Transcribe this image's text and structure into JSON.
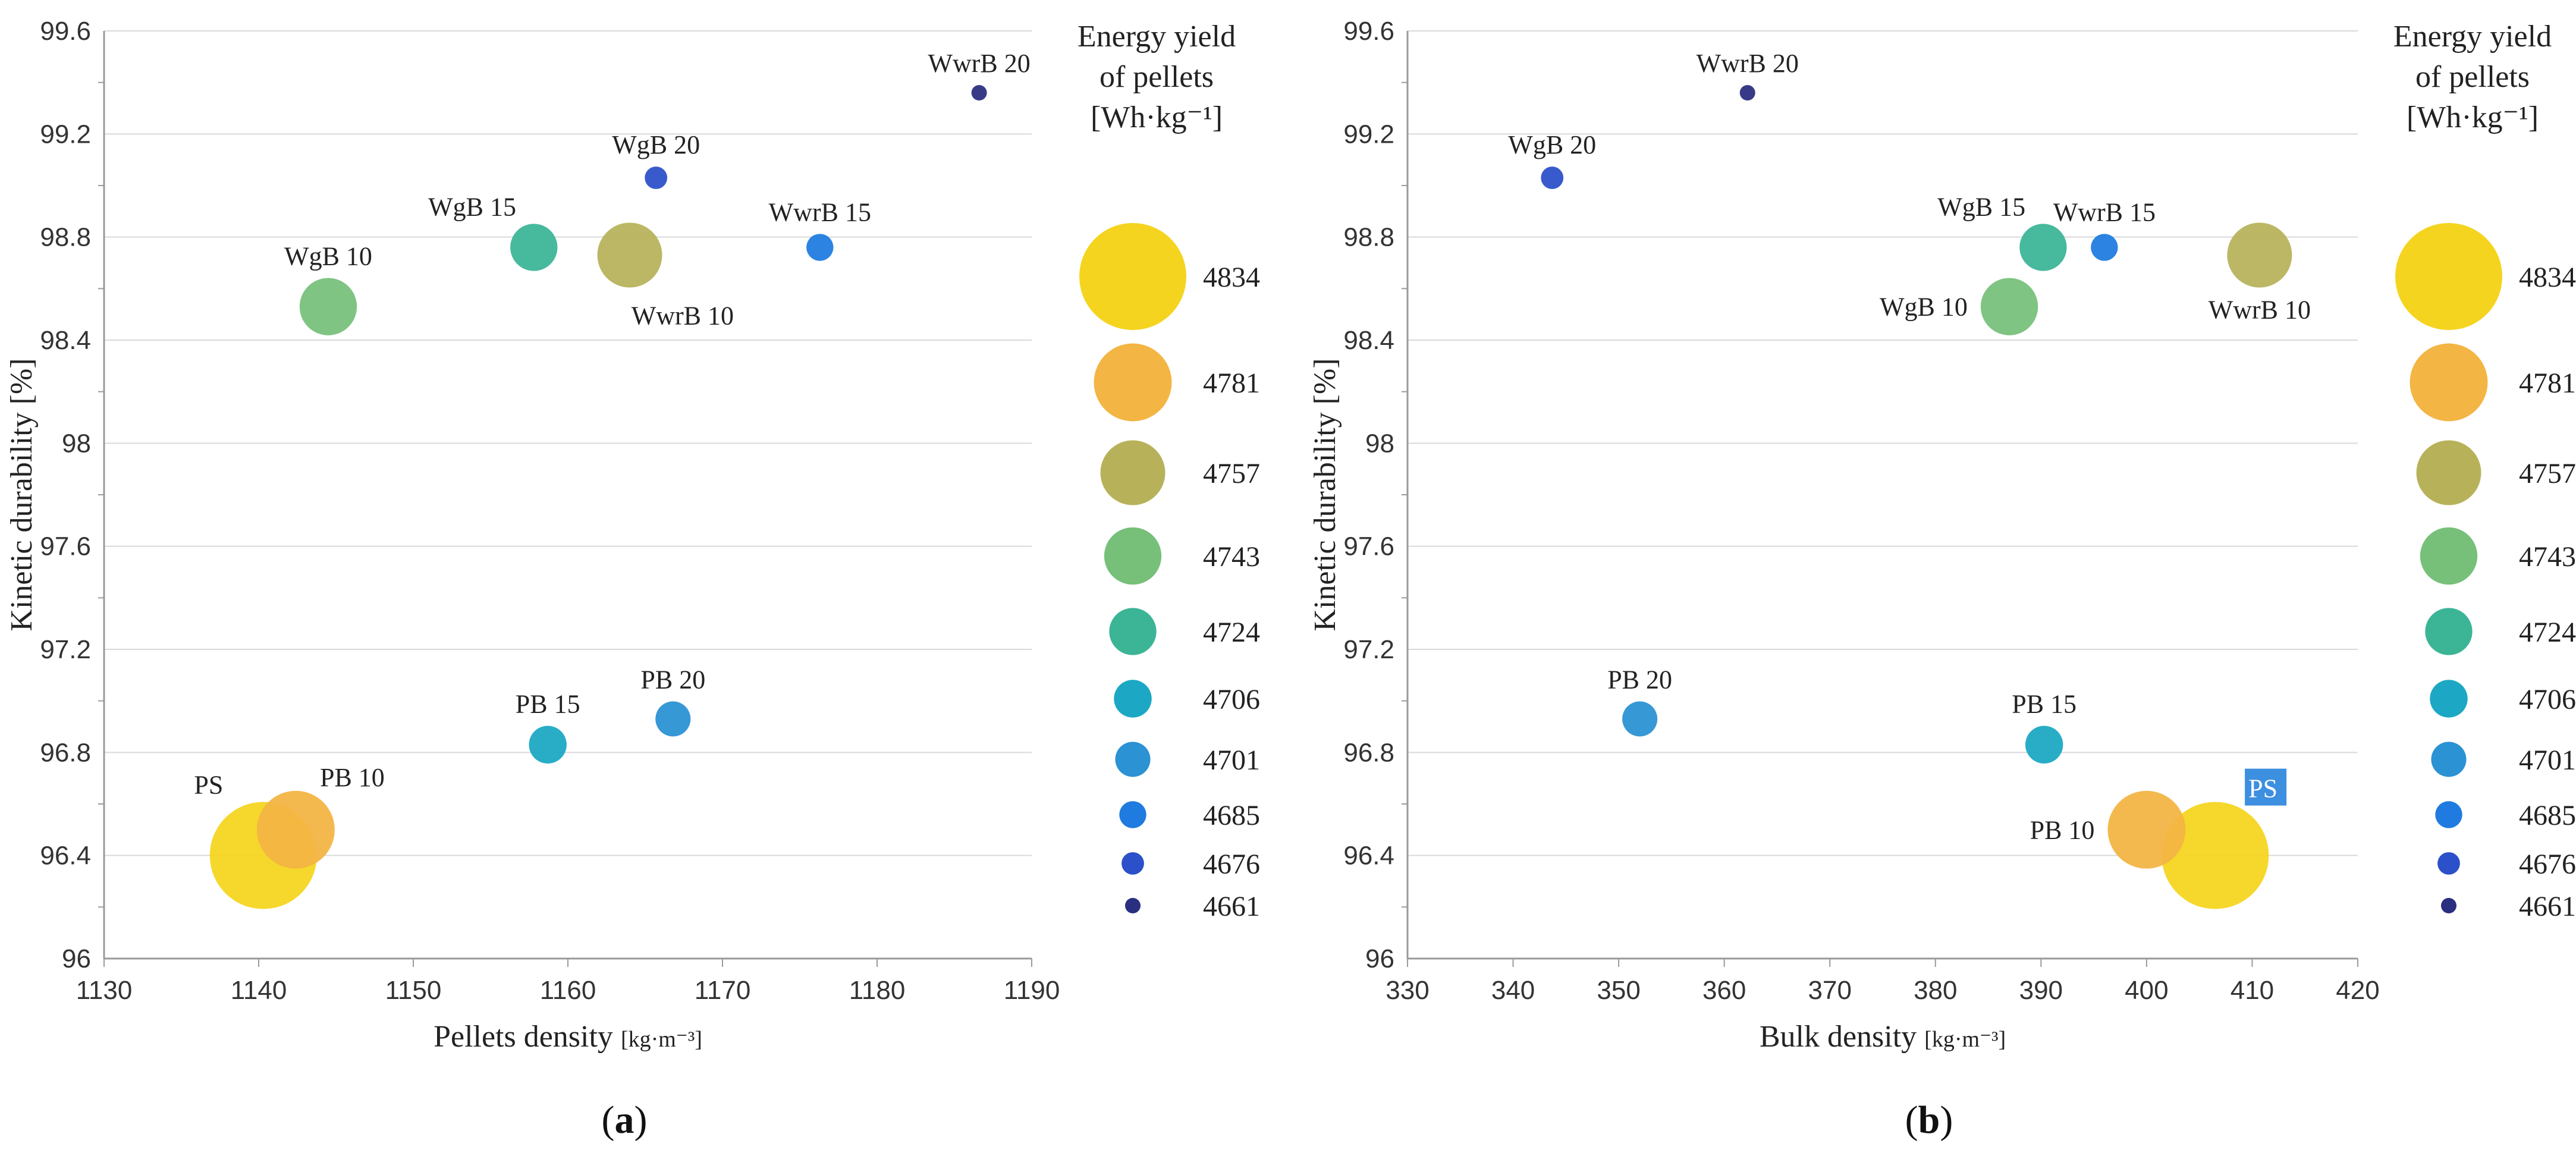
{
  "chart_data": [
    {
      "type": "scatter",
      "panel": "(a)",
      "caption": {
        "open": "(",
        "letter": "a",
        "close": ")"
      },
      "xlabel": "Pellets density",
      "xlabel_unit": "[kg·m⁻³]",
      "ylabel": "Kinetic durability [%]",
      "xlim": [
        1130,
        1190
      ],
      "ylim": [
        96,
        99.6
      ],
      "x_ticks": [
        1130,
        1140,
        1150,
        1160,
        1170,
        1180,
        1190
      ],
      "y_ticks": [
        "96",
        "96.4",
        "96.8",
        "97.2",
        "97.6",
        "98",
        "98.4",
        "98.8",
        "99.2",
        "99.6"
      ],
      "grid": "horizontal",
      "size_variable": "Energy yield of pellets [Wh·kg⁻¹]",
      "points": [
        {
          "label": "PS",
          "x": 1140.3,
          "y": 96.4,
          "energy": 4834,
          "color": "#f5d41f",
          "label_pos": "top-left"
        },
        {
          "label": "PB 10",
          "x": 1142.4,
          "y": 96.5,
          "energy": 4781,
          "color": "#f3b543",
          "label_pos": "top-right"
        },
        {
          "label": "PB 15",
          "x": 1158.7,
          "y": 96.83,
          "energy": 4706,
          "color": "#1ca8c4",
          "label_pos": "top"
        },
        {
          "label": "PB 20",
          "x": 1166.8,
          "y": 96.93,
          "energy": 4701,
          "color": "#2b92d3",
          "label_pos": "top"
        },
        {
          "label": "WgB 10",
          "x": 1144.5,
          "y": 98.53,
          "energy": 4743,
          "color": "#77c07a",
          "label_pos": "top"
        },
        {
          "label": "WgB 15",
          "x": 1157.8,
          "y": 98.76,
          "energy": 4724,
          "color": "#3bb596",
          "label_pos": "top-left"
        },
        {
          "label": "WgB 20",
          "x": 1165.7,
          "y": 99.03,
          "energy": 4676,
          "color": "#2c50c9",
          "label_pos": "top"
        },
        {
          "label": "WwrB 10",
          "x": 1164.0,
          "y": 98.73,
          "energy": 4757,
          "color": "#b7b25a",
          "label_pos": "bottom-right"
        },
        {
          "label": "WwrB 15",
          "x": 1176.3,
          "y": 98.76,
          "energy": 4685,
          "color": "#1f7be0",
          "label_pos": "top"
        },
        {
          "label": "WwrB 20",
          "x": 1186.6,
          "y": 99.36,
          "energy": 4661,
          "color": "#2b2f80",
          "label_pos": "top"
        }
      ]
    },
    {
      "type": "scatter",
      "panel": "(b)",
      "caption": {
        "open": "(",
        "letter": "b",
        "close": ")"
      },
      "xlabel": "Bulk density",
      "xlabel_unit": "[kg·m⁻³]",
      "ylabel": "Kinetic durability [%]",
      "xlim": [
        330,
        420
      ],
      "ylim": [
        96,
        99.6
      ],
      "x_ticks": [
        330,
        340,
        350,
        360,
        370,
        380,
        390,
        400,
        410,
        420
      ],
      "y_ticks": [
        "96",
        "96.4",
        "96.8",
        "97.2",
        "97.6",
        "98",
        "98.4",
        "98.8",
        "99.2",
        "99.6"
      ],
      "grid": "horizontal",
      "size_variable": "Energy yield of pellets [Wh·kg⁻¹]",
      "points": [
        {
          "label": "PS",
          "x": 406.5,
          "y": 96.4,
          "energy": 4834,
          "color": "#f5d41f",
          "label_pos": "top-right",
          "highlight": "#3d8fe0"
        },
        {
          "label": "PB 10",
          "x": 400.0,
          "y": 96.5,
          "energy": 4781,
          "color": "#f3b543",
          "label_pos": "left"
        },
        {
          "label": "PB 15",
          "x": 390.3,
          "y": 96.83,
          "energy": 4706,
          "color": "#1ca8c4",
          "label_pos": "top"
        },
        {
          "label": "PB 20",
          "x": 352.0,
          "y": 96.93,
          "energy": 4701,
          "color": "#2b92d3",
          "label_pos": "top"
        },
        {
          "label": "WgB 10",
          "x": 387.0,
          "y": 98.53,
          "energy": 4743,
          "color": "#77c07a",
          "label_pos": "left"
        },
        {
          "label": "WgB 15",
          "x": 390.2,
          "y": 98.76,
          "energy": 4724,
          "color": "#3bb596",
          "label_pos": "top-left"
        },
        {
          "label": "WgB 20",
          "x": 343.7,
          "y": 99.03,
          "energy": 4676,
          "color": "#2c50c9",
          "label_pos": "top"
        },
        {
          "label": "WwrB 10",
          "x": 410.7,
          "y": 98.73,
          "energy": 4757,
          "color": "#b7b25a",
          "label_pos": "bottom"
        },
        {
          "label": "WwrB 15",
          "x": 396.0,
          "y": 98.76,
          "energy": 4685,
          "color": "#1f7be0",
          "label_pos": "top"
        },
        {
          "label": "WwrB 20",
          "x": 362.2,
          "y": 99.36,
          "energy": 4661,
          "color": "#2b2f80",
          "label_pos": "top"
        }
      ]
    }
  ],
  "legend": {
    "title_lines": [
      "Energy yield",
      "of pellets",
      "[Wh·kg⁻¹]"
    ],
    "items": [
      {
        "value": 4834,
        "color": "#f5d41f"
      },
      {
        "value": 4781,
        "color": "#f3b543"
      },
      {
        "value": 4757,
        "color": "#b7b25a"
      },
      {
        "value": 4743,
        "color": "#77c07a"
      },
      {
        "value": 4724,
        "color": "#3bb596"
      },
      {
        "value": 4706,
        "color": "#1ca8c4"
      },
      {
        "value": 4701,
        "color": "#2b92d3"
      },
      {
        "value": 4685,
        "color": "#1f7be0"
      },
      {
        "value": 4676,
        "color": "#2c50c9"
      },
      {
        "value": 4661,
        "color": "#2b2f80"
      }
    ]
  }
}
